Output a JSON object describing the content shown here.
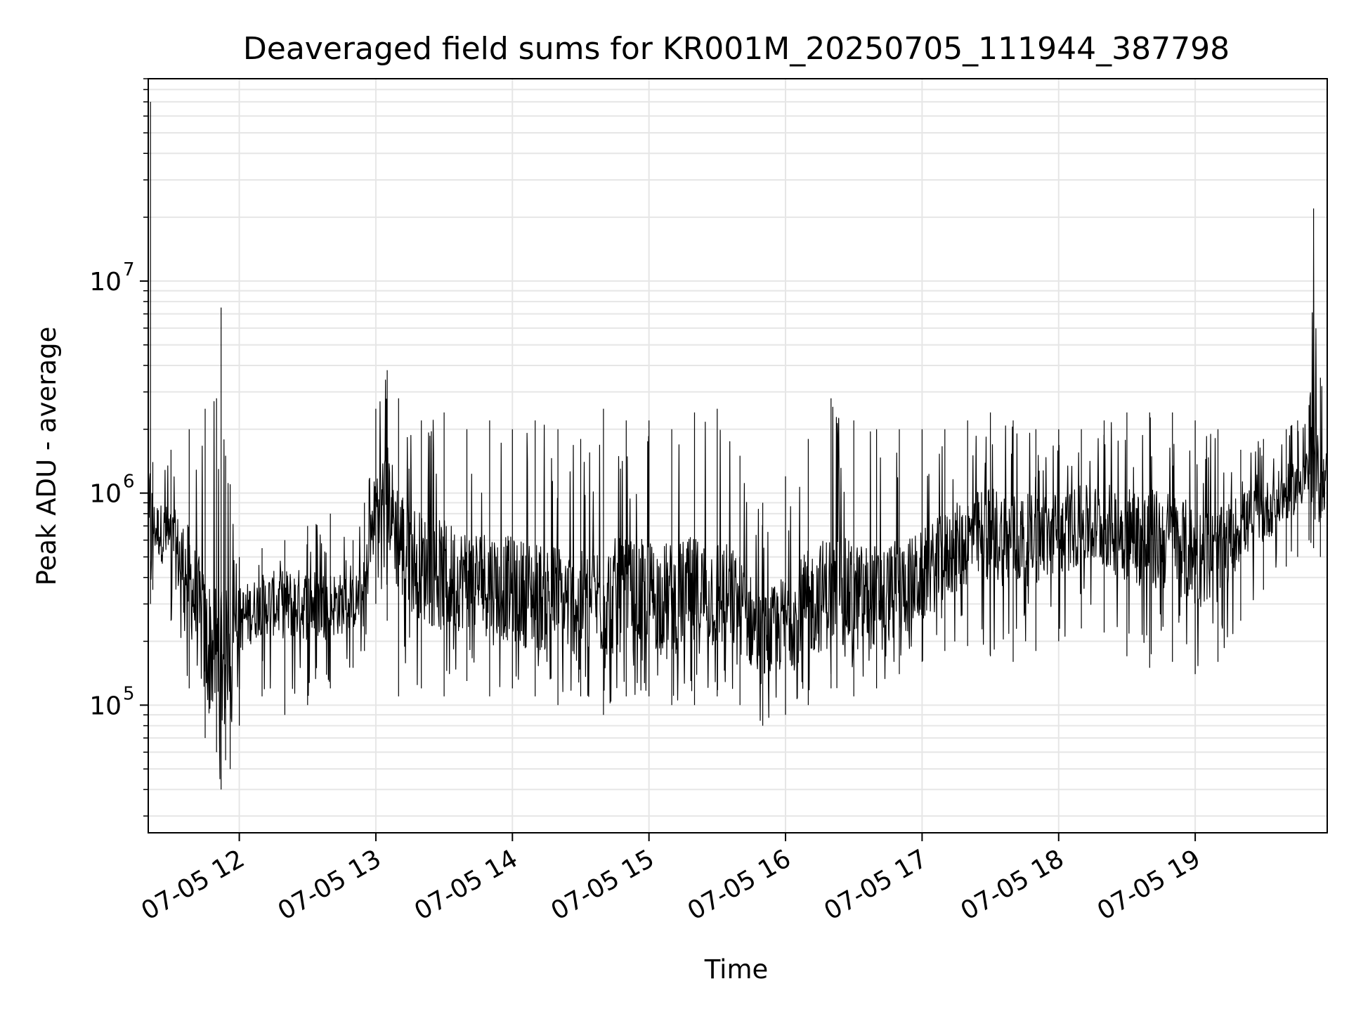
{
  "chart_data": {
    "type": "line",
    "title": "Deaveraged field sums for KR001M_20250705_111944_387798",
    "xlabel": "Time",
    "ylabel": "Peak ADU - average",
    "yscale": "log",
    "xlim": [
      "2025-07-05 11:20",
      "2025-07-05 19:58"
    ],
    "ylim": [
      25000,
      90000000
    ],
    "grid": true,
    "grid_minor": true,
    "line_color": "#000000",
    "x_ticks": [
      {
        "label": "07-05 12",
        "value": "2025-07-05 12:00"
      },
      {
        "label": "07-05 13",
        "value": "2025-07-05 13:00"
      },
      {
        "label": "07-05 14",
        "value": "2025-07-05 14:00"
      },
      {
        "label": "07-05 15",
        "value": "2025-07-05 15:00"
      },
      {
        "label": "07-05 16",
        "value": "2025-07-05 16:00"
      },
      {
        "label": "07-05 17",
        "value": "2025-07-05 17:00"
      },
      {
        "label": "07-05 18",
        "value": "2025-07-05 18:00"
      },
      {
        "label": "07-05 19",
        "value": "2025-07-05 19:00"
      }
    ],
    "y_ticks": [
      {
        "base": "10",
        "exp": "5",
        "value": 100000
      },
      {
        "base": "10",
        "exp": "6",
        "value": 1000000
      },
      {
        "base": "10",
        "exp": "7",
        "value": 10000000
      }
    ],
    "series": [
      {
        "x": [
          "2025-07-05 11:20",
          "2025-07-05 11:21",
          "2025-07-05 11:22",
          "2025-07-05 11:30",
          "2025-07-05 11:38",
          "2025-07-05 11:45",
          "2025-07-05 11:50",
          "2025-07-05 11:52",
          "2025-07-05 11:54",
          "2025-07-05 11:56",
          "2025-07-05 12:00",
          "2025-07-05 12:10",
          "2025-07-05 12:20",
          "2025-07-05 12:30",
          "2025-07-05 12:40",
          "2025-07-05 12:50",
          "2025-07-05 12:55",
          "2025-07-05 13:00",
          "2025-07-05 13:05",
          "2025-07-05 13:10",
          "2025-07-05 13:20",
          "2025-07-05 13:30",
          "2025-07-05 13:40",
          "2025-07-05 13:50",
          "2025-07-05 14:00",
          "2025-07-05 14:10",
          "2025-07-05 14:20",
          "2025-07-05 14:30",
          "2025-07-05 14:40",
          "2025-07-05 14:50",
          "2025-07-05 15:00",
          "2025-07-05 15:10",
          "2025-07-05 15:20",
          "2025-07-05 15:30",
          "2025-07-05 15:40",
          "2025-07-05 15:50",
          "2025-07-05 16:00",
          "2025-07-05 16:10",
          "2025-07-05 16:20",
          "2025-07-05 16:30",
          "2025-07-05 16:40",
          "2025-07-05 16:50",
          "2025-07-05 17:00",
          "2025-07-05 17:10",
          "2025-07-05 17:20",
          "2025-07-05 17:30",
          "2025-07-05 17:40",
          "2025-07-05 17:50",
          "2025-07-05 18:00",
          "2025-07-05 18:10",
          "2025-07-05 18:20",
          "2025-07-05 18:30",
          "2025-07-05 18:40",
          "2025-07-05 18:50",
          "2025-07-05 19:00",
          "2025-07-05 19:10",
          "2025-07-05 19:20",
          "2025-07-05 19:30",
          "2025-07-05 19:40",
          "2025-07-05 19:45",
          "2025-07-05 19:50",
          "2025-07-05 19:52",
          "2025-07-05 19:55",
          "2025-07-05 19:58"
        ],
        "low": [
          400000,
          300000,
          350000,
          250000,
          120000,
          70000,
          60000,
          40000,
          55000,
          50000,
          80000,
          110000,
          90000,
          100000,
          120000,
          150000,
          180000,
          300000,
          250000,
          110000,
          120000,
          110000,
          130000,
          110000,
          120000,
          110000,
          100000,
          110000,
          90000,
          110000,
          110000,
          100000,
          100000,
          110000,
          100000,
          80000,
          90000,
          100000,
          120000,
          110000,
          120000,
          140000,
          160000,
          180000,
          190000,
          170000,
          160000,
          180000,
          200000,
          230000,
          220000,
          170000,
          150000,
          160000,
          140000,
          160000,
          250000,
          350000,
          450000,
          500000,
          600000,
          550000,
          500000,
          600000
        ],
        "high": [
          900000,
          70000000,
          1400000,
          1600000,
          2000000,
          2500000,
          2800000,
          7500000,
          1500000,
          1100000,
          500000,
          550000,
          600000,
          700000,
          800000,
          600000,
          900000,
          2500000,
          3800000,
          2800000,
          2200000,
          2400000,
          2000000,
          2200000,
          2000000,
          2200000,
          2000000,
          1800000,
          2500000,
          2200000,
          2200000,
          2000000,
          2400000,
          2500000,
          1500000,
          900000,
          1200000,
          1800000,
          2800000,
          2200000,
          2000000,
          2000000,
          2000000,
          2000000,
          2200000,
          2400000,
          2200000,
          2000000,
          2000000,
          2000000,
          2200000,
          2400000,
          2400000,
          2400000,
          2200000,
          2000000,
          1600000,
          1800000,
          2000000,
          2200000,
          2600000,
          22000000,
          3500000,
          2500000
        ],
        "mean": [
          600000,
          700000,
          700000,
          600000,
          400000,
          200000,
          180000,
          170000,
          180000,
          200000,
          250000,
          300000,
          300000,
          300000,
          300000,
          300000,
          350000,
          900000,
          1000000,
          600000,
          450000,
          400000,
          400000,
          380000,
          350000,
          330000,
          320000,
          300000,
          320000,
          330000,
          330000,
          320000,
          330000,
          340000,
          300000,
          200000,
          250000,
          300000,
          350000,
          320000,
          330000,
          350000,
          400000,
          500000,
          600000,
          650000,
          600000,
          600000,
          650000,
          700000,
          700000,
          650000,
          600000,
          600000,
          500000,
          500000,
          700000,
          800000,
          1000000,
          1100000,
          1300000,
          1200000,
          1100000,
          1200000
        ]
      }
    ]
  }
}
